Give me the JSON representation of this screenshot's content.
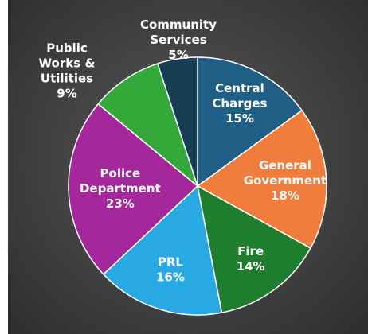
{
  "chart_data": {
    "type": "pie",
    "title": "",
    "slices": [
      {
        "name": "Central Charges",
        "value": 15,
        "label": "15%",
        "color": "#1f5f86"
      },
      {
        "name": "General Government",
        "value": 18,
        "label": "18%",
        "color": "#f07d3c"
      },
      {
        "name": "Fire",
        "value": 14,
        "label": "14%",
        "color": "#1f7d2e"
      },
      {
        "name": "PRL",
        "value": 16,
        "label": "16%",
        "color": "#28a9e3"
      },
      {
        "name": "Police Department",
        "value": 23,
        "label": "23%",
        "color": "#a4279b"
      },
      {
        "name": "Public Works & Utilities",
        "value": 9,
        "label": "9%",
        "color": "#35a83a"
      },
      {
        "name": "Community Services",
        "value": 5,
        "label": "5%",
        "color": "#173e52"
      }
    ],
    "legend": "none",
    "labels_inside": [
      {
        "slice": 0,
        "lines": [
          "Central",
          "Charges",
          "15%"
        ]
      },
      {
        "slice": 1,
        "lines": [
          "General",
          "Government",
          "18%"
        ]
      },
      {
        "slice": 2,
        "lines": [
          "Fire",
          "14%"
        ]
      },
      {
        "slice": 3,
        "lines": [
          "PRL",
          "16%"
        ]
      },
      {
        "slice": 4,
        "lines": [
          "Police",
          "Department",
          "23%"
        ]
      }
    ],
    "labels_outside": [
      {
        "slice": 5,
        "lines": [
          "Public",
          "Works &",
          "Utilities",
          "9%"
        ]
      },
      {
        "slice": 6,
        "lines": [
          "Community",
          "Services",
          "5%"
        ]
      }
    ]
  }
}
